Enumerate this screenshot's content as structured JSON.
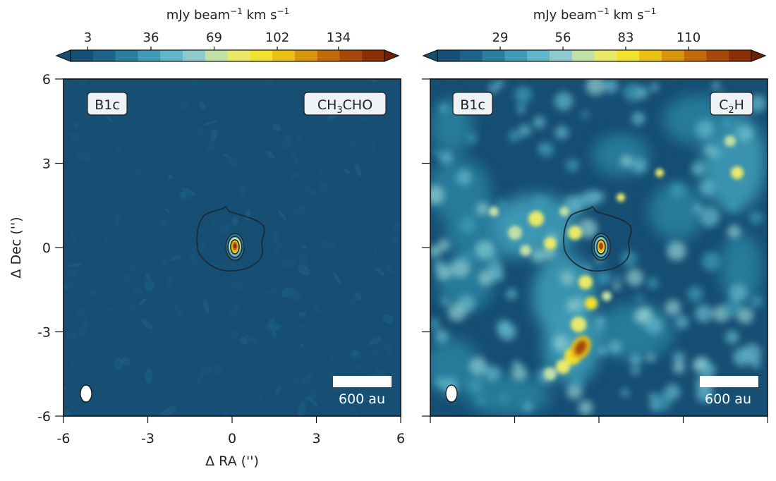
{
  "chart_data": [
    {
      "type": "heatmap",
      "source_label": "B1c",
      "molecule": {
        "base": "CH",
        "sub": "3",
        "tail": "CHO"
      },
      "colorbar": {
        "label": "mJy beam",
        "label_sup": "−1",
        "label_tail": " km s",
        "label_tail_sup": "−1",
        "ticks": [
          3,
          36,
          69,
          102,
          134
        ],
        "tick_labels": [
          "3",
          "36",
          "69",
          "102",
          "134"
        ],
        "range": [
          -6,
          158
        ]
      },
      "xlabel": "Δ RA ('')",
      "ylabel": "Δ Dec ('')",
      "xlim": [
        -6,
        6
      ],
      "ylim": [
        -6,
        6
      ],
      "xticks": [
        -6,
        -3,
        0,
        3,
        6
      ],
      "xtick_labels": [
        "-6",
        "-3",
        "0",
        "3",
        "6"
      ],
      "yticks": [
        6,
        3,
        0,
        -3,
        -6
      ],
      "ytick_labels": [
        "6",
        "3",
        "0",
        "-3",
        "-6"
      ],
      "emission_peaks": [
        {
          "x": 0.1,
          "y": 0.05,
          "value": 150
        }
      ],
      "scale_bar": "600 au"
    },
    {
      "type": "heatmap",
      "source_label": "B1c",
      "molecule": {
        "base": "C",
        "sub": "2",
        "tail": "H"
      },
      "colorbar": {
        "label": "mJy beam",
        "label_sup": "−1",
        "label_tail": " km s",
        "label_tail_sup": "−1",
        "ticks": [
          29,
          56,
          83,
          110
        ],
        "tick_labels": [
          "29",
          "56",
          "83",
          "110"
        ],
        "range": [
          2,
          137
        ]
      },
      "xlim": [
        -6,
        6
      ],
      "ylim": [
        -6,
        6
      ],
      "emission_peaks": [
        {
          "x": 0.05,
          "y": 0.05,
          "value": 125
        },
        {
          "x": -0.6,
          "y": -3.6,
          "value": 120
        }
      ],
      "scale_bar": "600 au"
    }
  ],
  "colors": {
    "cmap": [
      "#164e74",
      "#1d6389",
      "#2a7f9f",
      "#3f9bb6",
      "#63b5c9",
      "#8ec9cc",
      "#c2dfa6",
      "#eaea6a",
      "#f2e12e",
      "#e8c016",
      "#d7960e",
      "#c26a0a",
      "#a8470a",
      "#8a2e06"
    ],
    "background": "#164e74",
    "contour": "#1c2a36"
  }
}
